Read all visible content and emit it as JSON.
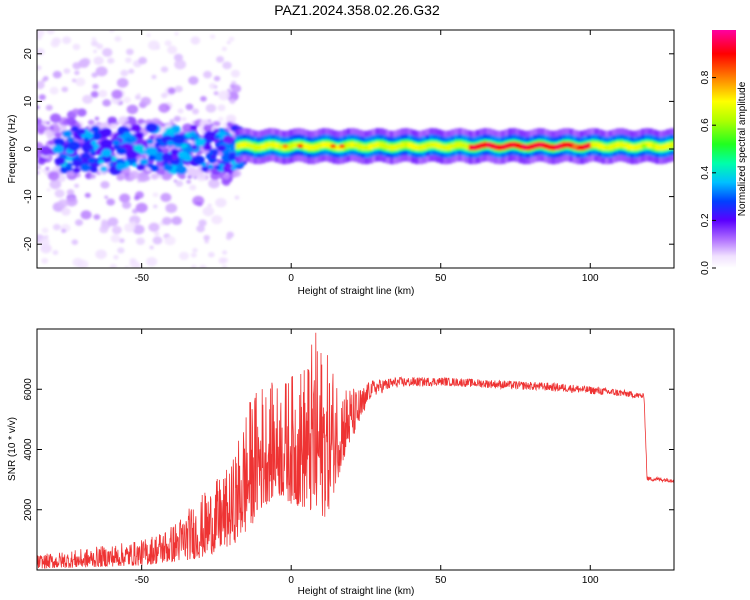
{
  "title": "PAZ1.2024.358.02.26.G32",
  "chart_data": [
    {
      "type": "heatmap",
      "xlabel": "Height of straight line (km)",
      "ylabel": "Frequency (Hz)",
      "xlim": [
        -85,
        128
      ],
      "ylim": [
        -25,
        25
      ],
      "xticks": [
        -50,
        0,
        50,
        100
      ],
      "yticks": [
        -20,
        -10,
        0,
        10,
        20
      ],
      "colorbar": {
        "label": "Normalized spectral amplitude",
        "range": [
          0.0,
          1.0
        ],
        "ticks": [
          "0.0",
          "0.2",
          "0.4",
          "0.6",
          "0.8"
        ]
      },
      "description_series": [
        {
          "x_range": [
            -85,
            -18
          ],
          "freq_center": 0,
          "freq_spread": 25,
          "amplitude": "low (0.0-0.2), scattered"
        },
        {
          "x_range": [
            -18,
            128
          ],
          "freq_center": 0.5,
          "freq_spread": 3,
          "amplitude": "high (0.4-1.0), narrow band"
        }
      ]
    },
    {
      "type": "line",
      "xlabel": "Height of straight line (km)",
      "ylabel": "SNR (10 * v/v)",
      "xlim": [
        -85,
        128
      ],
      "ylim": [
        0,
        8000
      ],
      "xticks": [
        -50,
        0,
        50,
        100
      ],
      "yticks": [
        2000,
        4000,
        6000
      ],
      "series_color": "#ee3333",
      "envelope": [
        {
          "x": -85,
          "lo": 50,
          "hi": 500
        },
        {
          "x": -70,
          "lo": 80,
          "hi": 700
        },
        {
          "x": -50,
          "lo": 150,
          "hi": 1000
        },
        {
          "x": -40,
          "lo": 250,
          "hi": 1500
        },
        {
          "x": -30,
          "lo": 400,
          "hi": 2500
        },
        {
          "x": -20,
          "lo": 800,
          "hi": 3500
        },
        {
          "x": -15,
          "lo": 1200,
          "hi": 5500
        },
        {
          "x": -10,
          "lo": 2000,
          "hi": 6300
        },
        {
          "x": -5,
          "lo": 2500,
          "hi": 6200
        },
        {
          "x": 0,
          "lo": 2200,
          "hi": 6500
        },
        {
          "x": 5,
          "lo": 2000,
          "hi": 7000
        },
        {
          "x": 8,
          "lo": 1600,
          "hi": 8000
        },
        {
          "x": 12,
          "lo": 1800,
          "hi": 7200
        },
        {
          "x": 17,
          "lo": 3500,
          "hi": 6300
        },
        {
          "x": 22,
          "lo": 4700,
          "hi": 6000
        },
        {
          "x": 27,
          "lo": 5500,
          "hi": 6300
        },
        {
          "x": 35,
          "lo": 5900,
          "hi": 6400
        },
        {
          "x": 50,
          "lo": 6000,
          "hi": 6400
        },
        {
          "x": 70,
          "lo": 5900,
          "hi": 6300
        },
        {
          "x": 90,
          "lo": 5800,
          "hi": 6200
        },
        {
          "x": 110,
          "lo": 5650,
          "hi": 6000
        },
        {
          "x": 118,
          "lo": 5600,
          "hi": 5850
        },
        {
          "x": 119,
          "lo": 2900,
          "hi": 3100
        },
        {
          "x": 128,
          "lo": 2850,
          "hi": 3050
        }
      ]
    }
  ]
}
